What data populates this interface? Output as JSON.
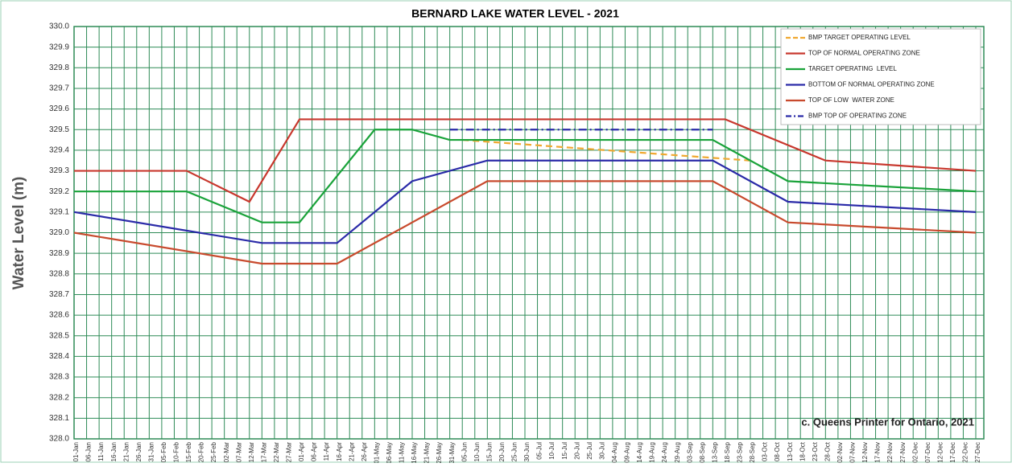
{
  "chart_data": {
    "type": "line",
    "title": "BERNARD LAKE WATER LEVEL - 2021",
    "y_label": "Water Level (m)",
    "annotation": "c. Queens Printer for Ontario, 2021",
    "grid": true,
    "grid_color": "#2e8b57",
    "legend": "top-right",
    "categories": [
      "01-Jan",
      "06-Jan",
      "11-Jan",
      "16-Jan",
      "21-Jan",
      "26-Jan",
      "31-Jan",
      "05-Feb",
      "10-Feb",
      "15-Feb",
      "20-Feb",
      "25-Feb",
      "02-Mar",
      "07-Mar",
      "12-Mar",
      "17-Mar",
      "22-Mar",
      "27-Mar",
      "01-Apr",
      "06-Apr",
      "11-Apr",
      "16-Apr",
      "21-Apr",
      "26-Apr",
      "01-May",
      "06-May",
      "11-May",
      "16-May",
      "21-May",
      "26-May",
      "31-May",
      "05-Jun",
      "10-Jun",
      "15-Jun",
      "20-Jun",
      "25-Jun",
      "30-Jun",
      "05-Jul",
      "10-Jul",
      "15-Jul",
      "20-Jul",
      "25-Jul",
      "30-Jul",
      "04-Aug",
      "09-Aug",
      "14-Aug",
      "19-Aug",
      "24-Aug",
      "29-Aug",
      "03-Sep",
      "08-Sep",
      "13-Sep",
      "18-Sep",
      "23-Sep",
      "28-Sep",
      "03-Oct",
      "08-Oct",
      "13-Oct",
      "18-Oct",
      "23-Oct",
      "28-Oct",
      "02-Nov",
      "07-Nov",
      "12-Nov",
      "17-Nov",
      "22-Nov",
      "27-Nov",
      "02-Dec",
      "07-Dec",
      "12-Dec",
      "17-Dec",
      "22-Dec",
      "27-Dec"
    ],
    "ylim": [
      328.0,
      330.0
    ],
    "yticks": [
      {
        "value": 328,
        "label": "328.0"
      },
      328.1,
      328.2,
      328.3,
      328.4,
      328.5,
      328.6,
      328.7,
      328.8,
      328.9,
      {
        "value": 329,
        "label": "329.0"
      },
      329.1,
      329.2,
      329.3,
      329.4,
      329.5,
      329.6,
      329.7,
      329.8,
      329.9,
      {
        "value": 330,
        "label": "330.0"
      }
    ],
    "series": [
      {
        "name": "BMP TARGET OPERATING LEVEL",
        "color": "#f0a830",
        "style": "dash",
        "x": [
          "05-Jun",
          "28-Sep"
        ],
        "values": [
          329.45,
          329.35
        ]
      },
      {
        "name": "TOP OF NORMAL OPERATING ZONE",
        "color": "#c8372d",
        "style": "solid",
        "x": [
          "01-Jan",
          "15-Feb",
          "12-Mar",
          "01-Apr",
          "18-Sep",
          "28-Oct",
          "27-Dec"
        ],
        "values": [
          329.3,
          329.3,
          329.15,
          329.55,
          329.55,
          329.35,
          329.3
        ]
      },
      {
        "name": "TARGET OPERATING  LEVEL",
        "color": "#1aa33a",
        "style": "solid",
        "x": [
          "01-Jan",
          "15-Feb",
          "17-Mar",
          "01-Apr",
          "01-May",
          "16-May",
          "31-May",
          "13-Sep",
          "13-Oct",
          "27-Dec"
        ],
        "values": [
          329.2,
          329.2,
          329.05,
          329.05,
          329.5,
          329.5,
          329.45,
          329.45,
          329.25,
          329.2
        ]
      },
      {
        "name": "BOTTOM OF NORMAL OPERATING ZONE",
        "color": "#2a2aa8",
        "style": "solid",
        "x": [
          "01-Jan",
          "17-Mar",
          "16-Apr",
          "16-May",
          "15-Jun",
          "13-Sep",
          "13-Oct",
          "27-Dec"
        ],
        "values": [
          329.1,
          328.95,
          328.95,
          329.25,
          329.35,
          329.35,
          329.15,
          329.1
        ]
      },
      {
        "name": "TOP OF LOW  WATER ZONE",
        "color": "#c84a2d",
        "style": "solid",
        "x": [
          "01-Jan",
          "17-Mar",
          "16-Apr",
          "15-Jun",
          "13-Sep",
          "13-Oct",
          "27-Dec"
        ],
        "values": [
          329.0,
          328.85,
          328.85,
          329.25,
          329.25,
          329.05,
          329.0
        ]
      },
      {
        "name": "BMP TOP OF OPERATING ZONE",
        "color": "#2a2aa8",
        "style": "dashdot",
        "x": [
          "31-May",
          "13-Sep"
        ],
        "values": [
          329.5,
          329.5
        ]
      }
    ]
  }
}
